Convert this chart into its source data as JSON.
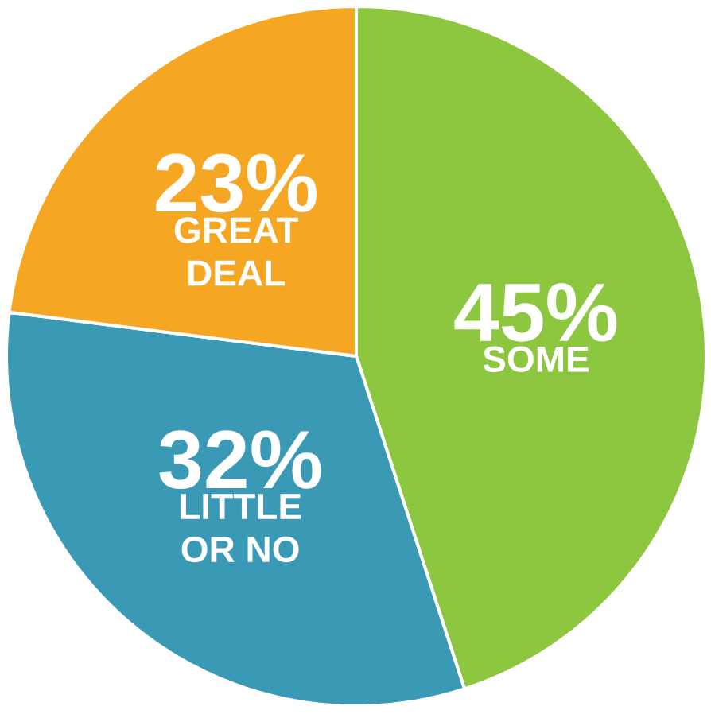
{
  "chart_data": {
    "type": "pie",
    "categories": [
      "SOME",
      "LITTLE OR NO",
      "GREAT DEAL"
    ],
    "values": [
      45,
      32,
      23
    ],
    "value_labels": [
      "45%",
      "32%",
      "23%"
    ],
    "colors": [
      "#8dc63f",
      "#3a9ab5",
      "#f5a623"
    ]
  }
}
